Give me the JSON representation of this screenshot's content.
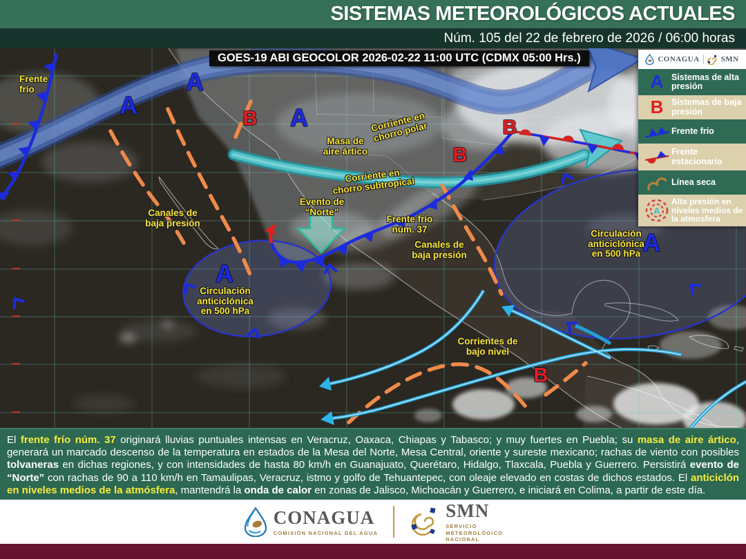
{
  "header": {
    "title": "SISTEMAS METEOROLÓGICOS ACTUALES",
    "subtitle": "Núm. 105 del 22 de febrero de 2026 / 06:00 horas"
  },
  "map": {
    "satellite_caption": "GOES-19 ABI GEOCOLOR 2026-02-22 11:00 UTC (CDMX  05:00 Hrs.)",
    "markers": {
      "high_letter": "A",
      "low_letter": "B"
    },
    "labels": {
      "frente_frio_nw": {
        "line1": "Frente",
        "line2": "frío"
      },
      "masa_artico": {
        "line1": "Masa de",
        "line2": "aire ártico"
      },
      "chorro_polar": {
        "line1": "Corriente en",
        "line2": "chorro polar"
      },
      "chorro_subtropical": {
        "line1": "Corriente en",
        "line2": "chorro subtropical"
      },
      "evento_norte": {
        "line1": "Evento de",
        "line2": "“Norte”"
      },
      "frente_frio_37": {
        "line1": "Frente frío",
        "line2": "núm. 37"
      },
      "canales_oeste": {
        "line1": "Canales de",
        "line2": "baja presión"
      },
      "canales_este": {
        "line1": "Canales de",
        "line2": "baja presión"
      },
      "circ_pacifico": {
        "line1": "Circulación",
        "line2": "anticiclónica",
        "line3": "en 500 hPa"
      },
      "circ_atlantico": {
        "line1": "Circulación",
        "line2": "anticiclónica",
        "line3": "en 500 hPa"
      },
      "corrientes": {
        "line1": "Corrientes de",
        "line2": "bajo nivel"
      }
    }
  },
  "legend": {
    "logo_conagua": "CONAGUA",
    "logo_smn": "SMN",
    "items": [
      {
        "symbol": "high-pressure",
        "letter": "A",
        "label": "Sistemas de alta presión"
      },
      {
        "symbol": "low-pressure",
        "letter": "B",
        "label": "Sistemas de baja presión"
      },
      {
        "symbol": "cold-front",
        "label": "Frente frío"
      },
      {
        "symbol": "stationary-front",
        "label": "Frente estacionario"
      },
      {
        "symbol": "dry-line",
        "label": "Línea seca"
      },
      {
        "symbol": "mid-level-high",
        "letter": "A",
        "label": "Alta presión en niveles medios de la atmosfera"
      }
    ]
  },
  "summary": {
    "segments": [
      {
        "text": "El ",
        "style": "n"
      },
      {
        "text": "frente frío núm. 37",
        "style": "y"
      },
      {
        "text": " originará lluvias puntuales intensas en Veracruz, Oaxaca, Chiapas y Tabasco; y muy fuertes en Puebla; su ",
        "style": "n"
      },
      {
        "text": "masa de aire ártico",
        "style": "y"
      },
      {
        "text": ", generará un marcado descenso de la temperatura en estados de la Mesa del Norte, Mesa Central, oriente y sureste mexicano; rachas de viento con posibles ",
        "style": "n"
      },
      {
        "text": "tolvaneras",
        "style": "b"
      },
      {
        "text": " en dichas regiones, y con intensidades de hasta 80 km/h en Guanajuato, Querétaro, Hidalgo, Tlaxcala, Puebla y Guerrero. Persistirá ",
        "style": "n"
      },
      {
        "text": "evento de “Norte”",
        "style": "b"
      },
      {
        "text": " con rachas de 90 a 110 km/h en Tamaulipas, Veracruz, istmo y golfo de Tehuantepec, con oleaje elevado en costas de dichos estados. El ",
        "style": "n"
      },
      {
        "text": "anticiclón en niveles medios de la atmósfera",
        "style": "y"
      },
      {
        "text": ", mantendrá la ",
        "style": "n"
      },
      {
        "text": "onda de calor",
        "style": "b"
      },
      {
        "text": " en zonas de Jalisco, Michoacán y Guerrero, e iniciará en Colima, a partir de este día.",
        "style": "n"
      }
    ]
  },
  "footer": {
    "conagua": {
      "name": "CONAGUA",
      "tagline": "COMISIÓN NACIONAL DEL AGUA"
    },
    "smn": {
      "name": "SMN",
      "tagline_lines": [
        "SERVICIO",
        "METEOROLÓGICO",
        "NACIONAL"
      ]
    }
  },
  "colors": {
    "header_green": "#367059",
    "header_dark": "#16342b",
    "band_green": "#2c6852",
    "maroon": "#681430",
    "legend_green": "#2f6a55",
    "legend_tan": "#dcd0ad",
    "label_yellow": "#f6e33b",
    "high_blue": "#1c2bdc",
    "low_red": "#e31e1e",
    "orange": "#ef8a4a",
    "cyan": "#2ab5e8"
  }
}
